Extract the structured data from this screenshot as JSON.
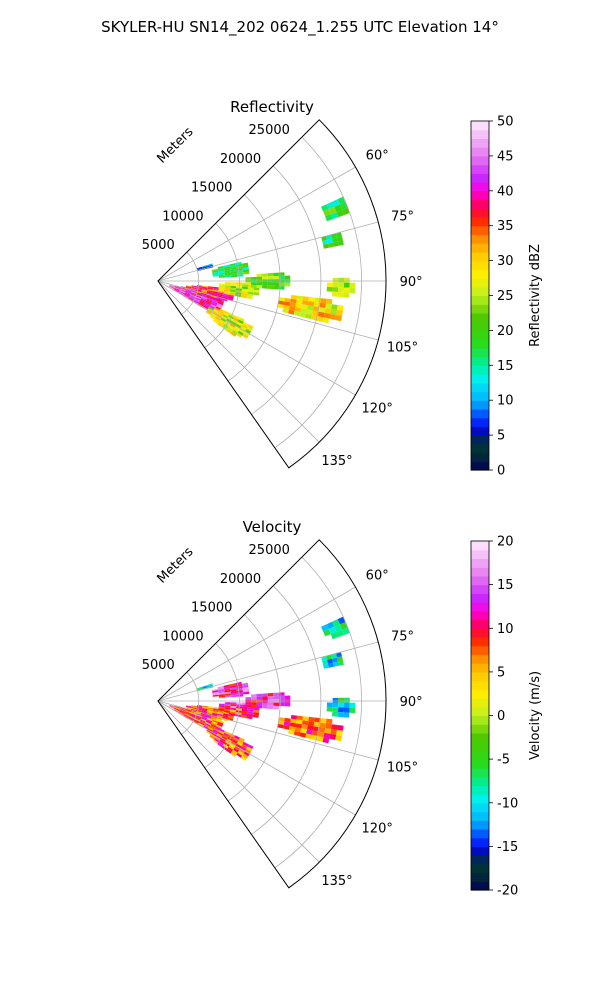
{
  "figure": {
    "title": "SKYLER-HU  SN14_202  0624_1.255 UTC Elevation 14°"
  },
  "chart_data": [
    {
      "type": "heatmap",
      "title": "Reflectivity",
      "radial_label": "Meters",
      "radial_ticks": [
        "5000",
        "10000",
        "15000",
        "20000",
        "25000"
      ],
      "angle_ticks": [
        "60°",
        "75°",
        "90°",
        "105°",
        "120°",
        "135°"
      ],
      "sector_azimuth_range": [
        45,
        145
      ],
      "radial_range": [
        0,
        28000
      ],
      "colorbar": {
        "label": "Reflectivity dBZ",
        "range": [
          0,
          50
        ],
        "ticks": [
          "0",
          "5",
          "10",
          "15",
          "20",
          "25",
          "30",
          "35",
          "40",
          "45",
          "50"
        ]
      }
    },
    {
      "type": "heatmap",
      "title": "Velocity",
      "radial_label": "Meters",
      "radial_ticks": [
        "5000",
        "10000",
        "15000",
        "20000",
        "25000"
      ],
      "angle_ticks": [
        "60°",
        "75°",
        "90°",
        "105°",
        "120°",
        "135°"
      ],
      "sector_azimuth_range": [
        45,
        145
      ],
      "radial_range": [
        0,
        28000
      ],
      "colorbar": {
        "label": "Velocity (m/s)",
        "range": [
          -20,
          20
        ],
        "ticks": [
          "-20",
          "-15",
          "-10",
          "-5",
          "0",
          "5",
          "10",
          "15",
          "20"
        ]
      }
    }
  ]
}
